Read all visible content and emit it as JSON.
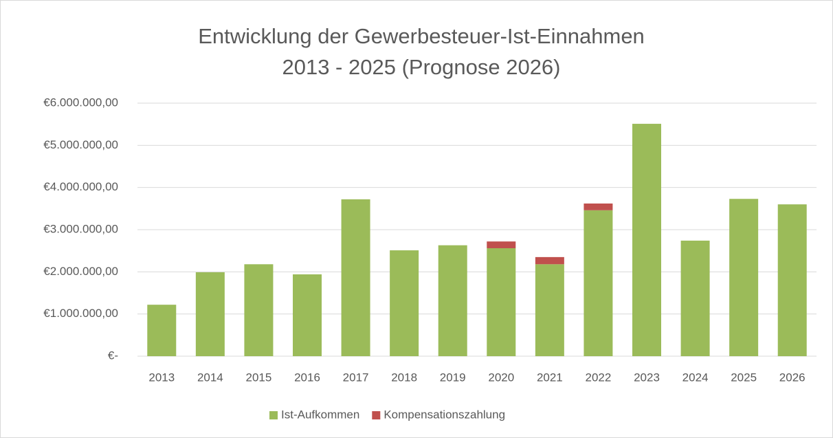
{
  "chart_data": {
    "type": "bar",
    "stacked": true,
    "title": "Entwicklung der Gewerbesteuer-Ist-Einnahmen",
    "subtitle": "2013 - 2025 (Prognose 2026)",
    "categories": [
      "2013",
      "2014",
      "2015",
      "2016",
      "2017",
      "2018",
      "2019",
      "2020",
      "2021",
      "2022",
      "2023",
      "2024",
      "2025",
      "2026"
    ],
    "series": [
      {
        "name": "Ist-Aufkommen",
        "color": "#9bbb59",
        "values": [
          1220000,
          1990000,
          2180000,
          1940000,
          3720000,
          2510000,
          2630000,
          2560000,
          2180000,
          3460000,
          5510000,
          2740000,
          3730000,
          3600000
        ]
      },
      {
        "name": "Kompensationszahlung",
        "color": "#c0504d",
        "values": [
          null,
          null,
          null,
          null,
          null,
          null,
          null,
          160000,
          170000,
          160000,
          null,
          null,
          null,
          null
        ]
      }
    ],
    "ylim": [
      0,
      6000000
    ],
    "yticks": [
      {
        "value": 0,
        "label": "€-"
      },
      {
        "value": 1000000,
        "label": "€1.000.000,00"
      },
      {
        "value": 2000000,
        "label": "€2.000.000,00"
      },
      {
        "value": 3000000,
        "label": "€3.000.000,00"
      },
      {
        "value": 4000000,
        "label": "€4.000.000,00"
      },
      {
        "value": 5000000,
        "label": "€5.000.000,00"
      },
      {
        "value": 6000000,
        "label": "€6.000.000,00"
      }
    ],
    "grid": true,
    "legend": "bottom"
  }
}
